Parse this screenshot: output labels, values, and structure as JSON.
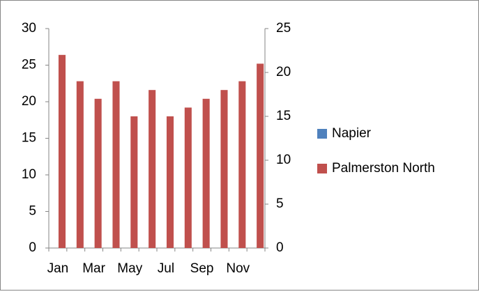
{
  "chart_data": {
    "type": "bar",
    "categories": [
      "Jan",
      null,
      "Mar",
      null,
      "May",
      null,
      "Jul",
      null,
      "Sep",
      null,
      "Nov",
      null
    ],
    "series": [
      {
        "name": "Napier",
        "color": "#4f81bd",
        "values": [
          null,
          null,
          null,
          null,
          null,
          null,
          null,
          null,
          null,
          null,
          null,
          null
        ]
      },
      {
        "name": "Palmerston North",
        "color": "#c0504d",
        "axis": "y2",
        "values": [
          22,
          19,
          17,
          19,
          15,
          18,
          15,
          16,
          17,
          18,
          19,
          21
        ]
      }
    ],
    "ylim": [
      0,
      30
    ],
    "yticks": [
      0,
      5,
      10,
      15,
      20,
      25,
      30
    ],
    "y2lim": [
      0,
      25
    ],
    "y2ticks": [
      0,
      5,
      10,
      15,
      20,
      25
    ],
    "legend": "right",
    "grid": false
  }
}
